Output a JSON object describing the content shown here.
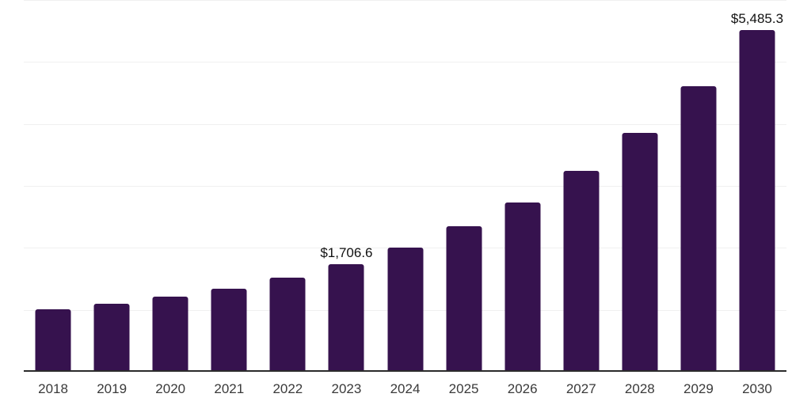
{
  "chart_data": {
    "type": "bar",
    "title": "",
    "xlabel": "",
    "ylabel": "",
    "categories": [
      "2018",
      "2019",
      "2020",
      "2021",
      "2022",
      "2023",
      "2024",
      "2025",
      "2026",
      "2027",
      "2028",
      "2029",
      "2030"
    ],
    "values": [
      990,
      1075,
      1190,
      1320,
      1490,
      1706.6,
      1980,
      2325,
      2710,
      3220,
      3830,
      4580,
      5485.3
    ],
    "annotations": [
      {
        "category": "2023",
        "label": "$1,706.6"
      },
      {
        "category": "2030",
        "label": "$5,485.3"
      }
    ],
    "ylim": [
      0,
      6000
    ],
    "gridline_values": [
      1000,
      2000,
      3000,
      4000,
      5000,
      6000
    ],
    "grid": "horizontal",
    "y_axis_labels": "none",
    "legend_position": "none"
  },
  "colors": {
    "bar": "#36124E",
    "axis_line": "#2B2B2B",
    "gridline": "#F0F0F0",
    "annotation_text": "#111111",
    "tick_text": "#3A3A3A",
    "background": "#FFFFFF"
  }
}
